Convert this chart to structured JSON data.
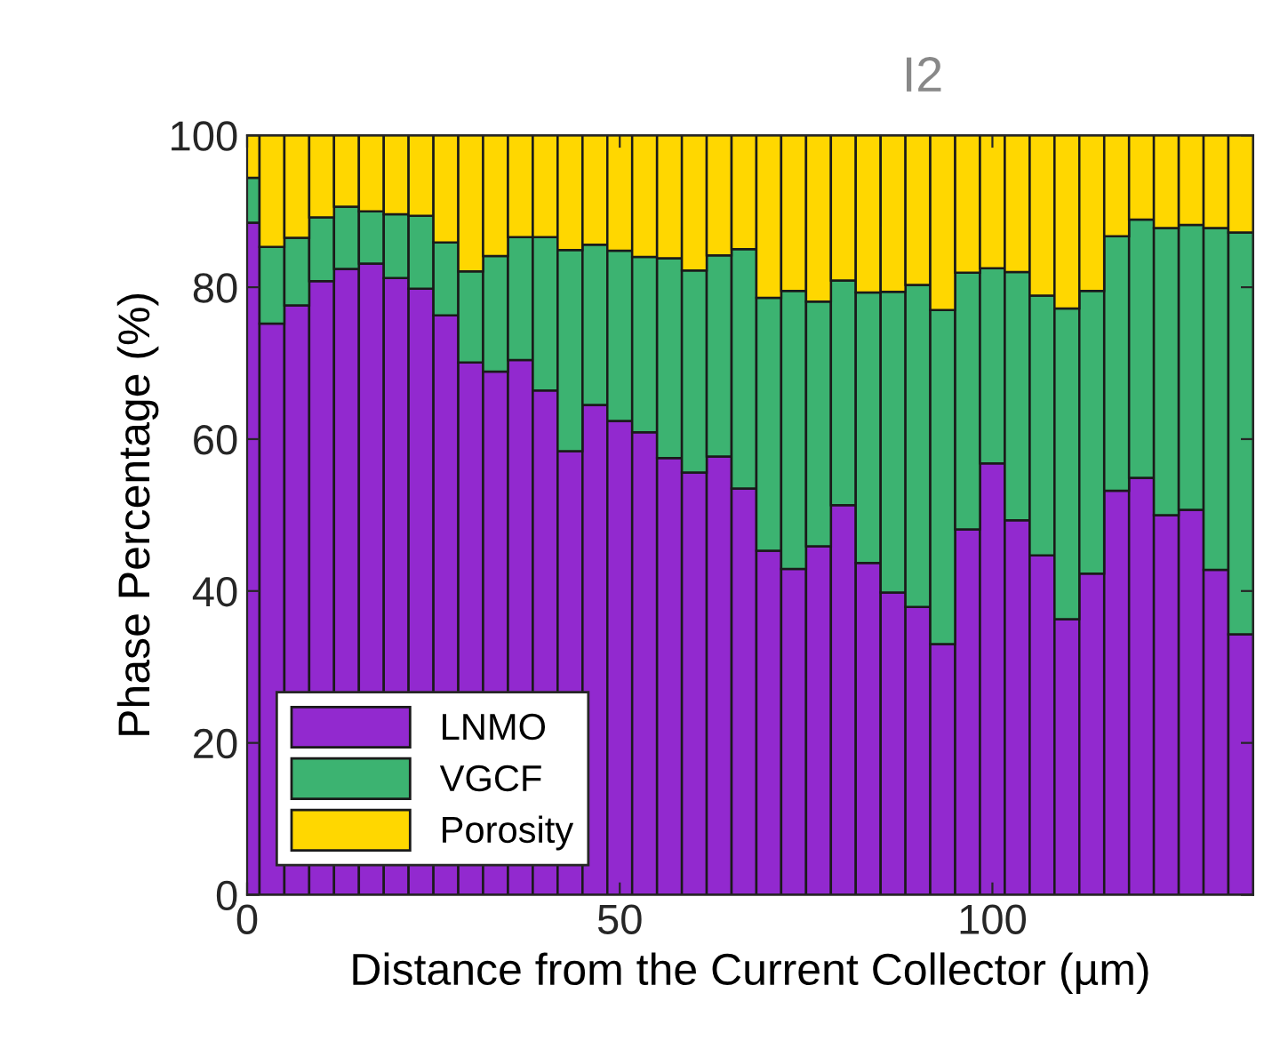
{
  "chart_data": {
    "type": "bar",
    "stacked": true,
    "xlabel": "Distance from the Current Collector (µm)",
    "ylabel": "Phase Percentage (%)",
    "annotations": [
      "I2"
    ],
    "x": [
      0,
      3.33,
      6.67,
      10,
      13.33,
      16.67,
      20,
      23.33,
      26.67,
      30,
      33.33,
      36.67,
      40,
      43.33,
      46.67,
      50,
      53.33,
      56.67,
      60,
      63.33,
      66.67,
      70,
      73.33,
      76.67,
      80,
      83.33,
      86.67,
      90,
      93.33,
      96.67,
      100,
      103.33,
      106.67,
      110,
      113.33,
      116.67,
      120,
      123.33,
      126.67,
      130,
      133.33
    ],
    "series": [
      {
        "name": "LNMO",
        "color": "#9229cf",
        "values": [
          88.5,
          75.2,
          77.6,
          80.8,
          82.4,
          83.1,
          81.2,
          79.8,
          76.3,
          70.1,
          68.9,
          70.4,
          66.4,
          58.4,
          64.5,
          62.4,
          60.9,
          57.5,
          55.6,
          57.7,
          53.5,
          45.3,
          42.9,
          45.9,
          51.3,
          43.7,
          39.8,
          37.9,
          33.0,
          48.1,
          56.8,
          49.3,
          44.7,
          36.3,
          42.3,
          53.2,
          54.9,
          50.0,
          50.7,
          42.8,
          34.3
        ]
      },
      {
        "name": "VGCF",
        "color": "#3cb371",
        "values": [
          5.9,
          10.1,
          8.9,
          8.4,
          8.2,
          6.9,
          8.4,
          9.6,
          9.6,
          12.0,
          15.2,
          16.2,
          20.2,
          26.5,
          21.1,
          22.4,
          23.1,
          26.3,
          26.6,
          26.5,
          31.5,
          33.3,
          36.6,
          32.2,
          29.6,
          35.6,
          39.6,
          42.4,
          44.0,
          33.8,
          25.7,
          32.7,
          34.2,
          40.9,
          37.2,
          33.5,
          34.0,
          37.8,
          37.5,
          45.0,
          52.9
        ]
      },
      {
        "name": "Porosity",
        "color": "#ffd700",
        "values": [
          5.6,
          14.7,
          13.5,
          10.8,
          9.4,
          10.0,
          10.4,
          10.6,
          14.1,
          17.9,
          15.9,
          13.4,
          13.4,
          15.1,
          14.4,
          15.2,
          16.0,
          16.2,
          17.8,
          15.8,
          15.0,
          21.4,
          20.5,
          21.9,
          19.1,
          20.7,
          20.6,
          19.7,
          23.0,
          18.1,
          17.5,
          18.0,
          21.1,
          22.8,
          20.5,
          13.3,
          11.1,
          12.2,
          11.8,
          12.2,
          12.8
        ]
      }
    ],
    "xlim": [
      0,
      135
    ],
    "xticks": [
      0,
      50,
      100
    ],
    "ylim": [
      0,
      100
    ],
    "yticks": [
      0,
      20,
      40,
      60,
      80,
      100
    ],
    "grid": false,
    "legend": "bottom left"
  }
}
